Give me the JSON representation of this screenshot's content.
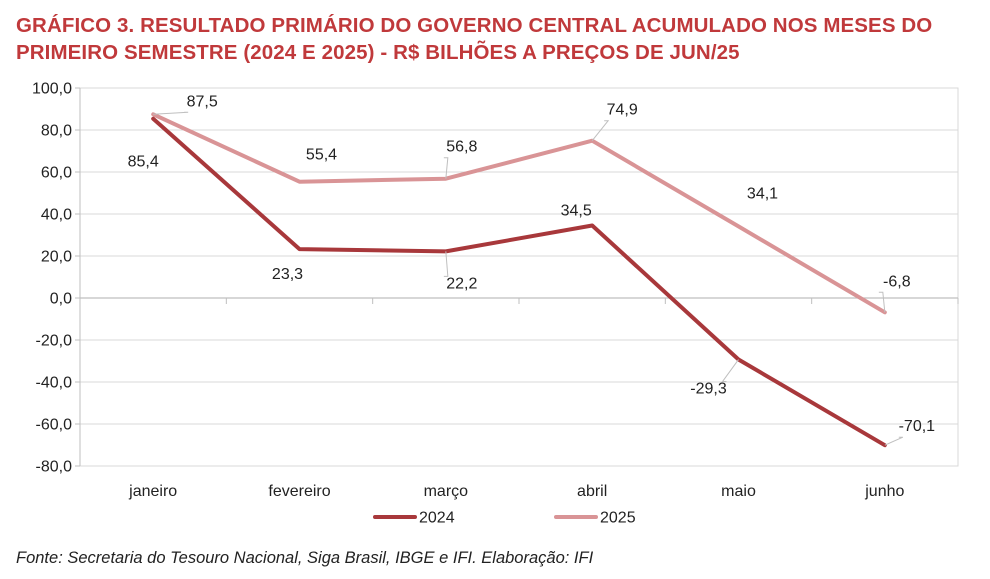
{
  "chart_data": {
    "type": "line",
    "title": "GRÁFICO 3. RESULTADO PRIMÁRIO DO GOVERNO CENTRAL ACUMULADO NOS MESES DO PRIMEIRO SEMESTRE (2024 E 2025) - R$ BILHÕES A PREÇOS DE JUN/25",
    "categories": [
      "janeiro",
      "fevereiro",
      "março",
      "abril",
      "maio",
      "junho"
    ],
    "series": [
      {
        "name": "2024",
        "color": "#a8383b",
        "values": [
          85.4,
          23.3,
          22.2,
          34.5,
          -29.3,
          -70.1
        ],
        "labels": [
          "85,4",
          "23,3",
          "22,2",
          "34,5",
          "-29,3",
          "-70,1"
        ]
      },
      {
        "name": "2025",
        "color": "#d99496",
        "values": [
          87.5,
          55.4,
          56.8,
          74.9,
          34.1,
          -6.8
        ],
        "labels": [
          "87,5",
          "55,4",
          "56,8",
          "74,9",
          "34,1",
          "-6,8"
        ]
      }
    ],
    "ylim": [
      -80,
      100
    ],
    "yticks": [
      100,
      80,
      60,
      40,
      20,
      0,
      -20,
      -40,
      -60,
      -80
    ],
    "ytick_labels": [
      "100,0",
      "80,0",
      "60,0",
      "40,0",
      "20,0",
      "0,0",
      "-20,0",
      "-40,0",
      "-60,0",
      "-80,0"
    ],
    "grid": true,
    "legend": "bottom-center"
  },
  "source": "Fonte: Secretaria do Tesouro Nacional, Siga Brasil, IBGE e IFI. Elaboração: IFI"
}
